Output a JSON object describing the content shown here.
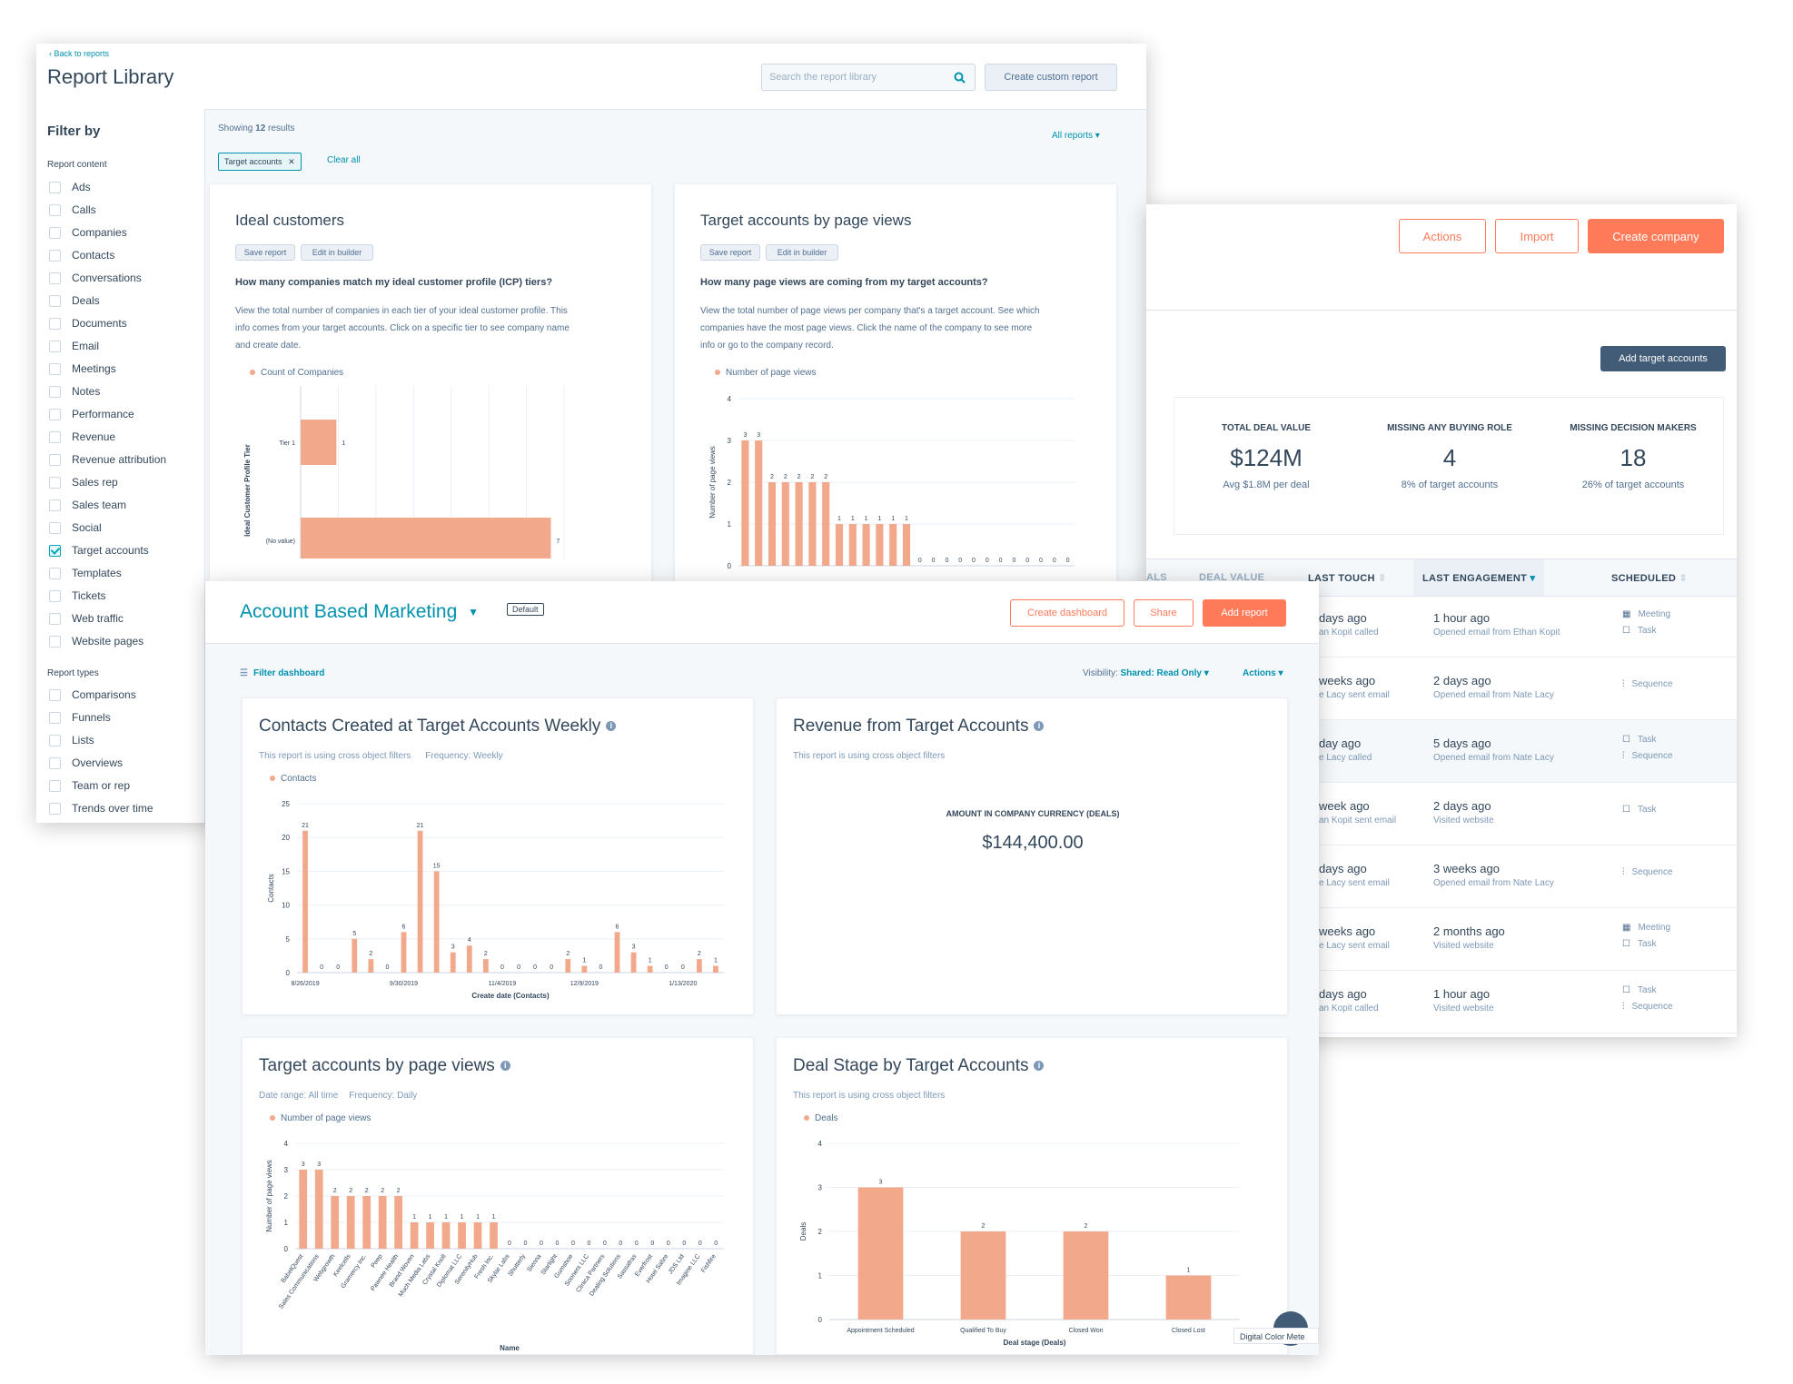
{
  "report_library": {
    "back_link": "‹ Back to reports",
    "title": "Report Library",
    "search_placeholder": "Search the report library",
    "create_button": "Create custom report",
    "filter_by": "Filter by",
    "report_content_label": "Report content",
    "content_items": [
      "Ads",
      "Calls",
      "Companies",
      "Contacts",
      "Conversations",
      "Deals",
      "Documents",
      "Email",
      "Meetings",
      "Notes",
      "Performance",
      "Revenue",
      "Revenue attribution",
      "Sales rep",
      "Sales team",
      "Social",
      "Target accounts",
      "Templates",
      "Tickets",
      "Web traffic",
      "Website pages"
    ],
    "checked_item": "Target accounts",
    "report_types_label": "Report types",
    "type_items": [
      "Comparisons",
      "Funnels",
      "Lists",
      "Overviews",
      "Team or rep",
      "Trends over time"
    ],
    "showing_prefix": "Showing ",
    "showing_count": "12",
    "showing_suffix": " results",
    "filter_chip": "Target accounts",
    "clear_all": "Clear all",
    "all_reports": "All reports ▾",
    "card1": {
      "title": "Ideal customers",
      "save": "Save report",
      "edit": "Edit in builder",
      "question": "How many companies match my ideal customer profile (ICP) tiers?",
      "desc": [
        "View the total number of companies in each tier of your ideal customer profile. This",
        "info comes from your target accounts. Click on a specific tier to see company name",
        "and create date."
      ],
      "legend": "Count of Companies",
      "ylabel": "Ideal Customer Profile Tier"
    },
    "card2": {
      "title": "Target accounts by page views",
      "save": "Save report",
      "edit": "Edit in builder",
      "question": "How many page views are coming from my target accounts?",
      "desc": [
        "View the total number of page views per company that's a target account. See which",
        "companies have the most page views. Click the name of the company to see more",
        "info or go to the company record."
      ],
      "legend": "Number of page views",
      "ylabel": "Number of page views"
    }
  },
  "companies": {
    "actions": "Actions",
    "import": "Import",
    "create_company": "Create company",
    "add_target": "Add target accounts",
    "stats": [
      {
        "label": "TOTAL DEAL VALUE",
        "value": "$124M",
        "sub": "Avg $1.8M per deal"
      },
      {
        "label": "MISSING ANY BUYING ROLE",
        "value": "4",
        "sub": "8% of target accounts"
      },
      {
        "label": "MISSING DECISION MAKERS",
        "value": "18",
        "sub": "26% of target accounts"
      }
    ],
    "headers": [
      "ALS",
      "DEAL VALUE",
      "LAST TOUCH",
      "LAST ENGAGEMENT",
      "SCHEDULED"
    ],
    "rows": [
      {
        "touch": "days ago",
        "touch_sub": "an Kopit called",
        "eng": "1 hour ago",
        "eng_sub": "Opened email from Ethan Kopit",
        "sched": [
          "Meeting",
          "Task"
        ]
      },
      {
        "touch": "weeks ago",
        "touch_sub": "e Lacy sent email",
        "eng": "2 days ago",
        "eng_sub": "Opened email from Nate Lacy",
        "sched": [
          "Sequence"
        ]
      },
      {
        "touch": "day ago",
        "touch_sub": "e Lacy called",
        "eng": "5 days ago",
        "eng_sub": "Opened email from Nate Lacy",
        "sched": [
          "Task",
          "Sequence"
        ]
      },
      {
        "touch": "week ago",
        "touch_sub": "an Kopit sent email",
        "eng": "2 days ago",
        "eng_sub": "Visited website",
        "sched": [
          "Task"
        ]
      },
      {
        "touch": "days ago",
        "touch_sub": "e Lacy sent email",
        "eng": "3 weeks ago",
        "eng_sub": "Opened email from Nate Lacy",
        "sched": [
          "Sequence"
        ]
      },
      {
        "touch": "weeks ago",
        "touch_sub": "e Lacy sent email",
        "eng": "2 months ago",
        "eng_sub": "Visited website",
        "sched": [
          "Meeting",
          "Task"
        ]
      },
      {
        "touch": "days ago",
        "touch_sub": "an Kopit called",
        "eng": "1 hour ago",
        "eng_sub": "Visited website",
        "sched": [
          "Task",
          "Sequence"
        ]
      }
    ]
  },
  "dashboard": {
    "title": "Account Based Marketing",
    "default_badge": "Default",
    "create_dashboard": "Create dashboard",
    "share": "Share",
    "add_report": "Add report",
    "filter_dashboard": "Filter dashboard",
    "visibility_label": "Visibility:",
    "visibility_value": "Shared: Read Only ▾",
    "actions": "Actions ▾",
    "contacts_card": {
      "title": "Contacts Created at Target Accounts Weekly",
      "note": "This report is using cross object filters",
      "frequency": "Frequency: Weekly",
      "legend": "Contacts",
      "ylabel": "Contacts",
      "xlabel": "Create date (Contacts)"
    },
    "revenue_card": {
      "title": "Revenue from Target Accounts",
      "note": "This report is using cross object filters",
      "metric_label": "AMOUNT IN COMPANY CURRENCY (DEALS)",
      "metric_value": "$144,400.00"
    },
    "pageviews_card": {
      "title": "Target accounts by page views",
      "date_range": "Date range: All time",
      "frequency": "Frequency: Daily",
      "legend": "Number of page views",
      "ylabel": "Number of page views",
      "xlabel": "Name"
    },
    "deals_card": {
      "title": "Deal Stage by Target Accounts",
      "note": "This report is using cross object filters",
      "legend": "Deals",
      "ylabel": "Deals",
      "xlabel": "Deal stage (Deals)"
    },
    "chat_label": "Digital Color Mete"
  },
  "chart_data": [
    {
      "id": "ideal-customers",
      "type": "bar",
      "orientation": "horizontal",
      "categories": [
        "Tier 1",
        "(No value)"
      ],
      "values": [
        1,
        7
      ],
      "ylabel": "Ideal Customer Profile Tier"
    },
    {
      "id": "library-page-views",
      "type": "bar",
      "y_ticks": [
        0,
        1,
        2,
        3,
        4
      ],
      "values": [
        3,
        3,
        2,
        2,
        2,
        2,
        2,
        1,
        1,
        1,
        1,
        1,
        1,
        0,
        0,
        0,
        0,
        0,
        0,
        0,
        0,
        0,
        0,
        0,
        0
      ],
      "ylabel": "Number of page views",
      "ylim": [
        0,
        4
      ]
    },
    {
      "id": "contacts-weekly",
      "type": "bar",
      "y_ticks": [
        0,
        5,
        10,
        15,
        20,
        25
      ],
      "x_ticks": [
        "8/26/2019",
        "9/30/2019",
        "11/4/2019",
        "12/9/2019",
        "1/13/2020"
      ],
      "values": [
        21,
        0,
        0,
        5,
        2,
        0,
        6,
        21,
        15,
        3,
        4,
        2,
        0,
        0,
        0,
        0,
        2,
        1,
        0,
        6,
        3,
        1,
        0,
        0,
        2,
        1
      ],
      "ylabel": "Contacts",
      "xlabel": "Create date (Contacts)",
      "ylim": [
        0,
        25
      ]
    },
    {
      "id": "dashboard-page-views",
      "type": "bar",
      "y_ticks": [
        0,
        1,
        2,
        3,
        4
      ],
      "categories": [
        "BabelQuest",
        "Sales Communications",
        "Webgrowth",
        "Keelcells",
        "Gramercy Inc.",
        "Peep",
        "Pawnee Health",
        "Brand Woven",
        "Much Media Labs",
        "Crystal Knoll",
        "Diplomat LLC",
        "SerenityHub",
        "Fresh Inc.",
        "Skylar Labs",
        "Shutterly",
        "Sienna",
        "Starlight",
        "Gumshoe",
        "Sooners LLC",
        "Clinica Partners",
        "Dealing Solutions",
        "Sassafras",
        "Everfrost",
        "Hotel Sabre",
        "JDS Ltd",
        "Imagine LLC",
        "Fishfire"
      ],
      "values": [
        3,
        3,
        2,
        2,
        2,
        2,
        2,
        1,
        1,
        1,
        1,
        1,
        1,
        0,
        0,
        0,
        0,
        0,
        0,
        0,
        0,
        0,
        0,
        0,
        0,
        0,
        0
      ],
      "ylabel": "Number of page views",
      "xlabel": "Name",
      "ylim": [
        0,
        4
      ]
    },
    {
      "id": "deal-stage",
      "type": "bar",
      "y_ticks": [
        0,
        1,
        2,
        3,
        4
      ],
      "categories": [
        "Appointment Scheduled",
        "Qualified To Buy",
        "Closed Won",
        "Closed Lost"
      ],
      "values": [
        3,
        2,
        2,
        1
      ],
      "ylabel": "Deals",
      "xlabel": "Deal stage (Deals)",
      "ylim": [
        0,
        4
      ]
    }
  ]
}
